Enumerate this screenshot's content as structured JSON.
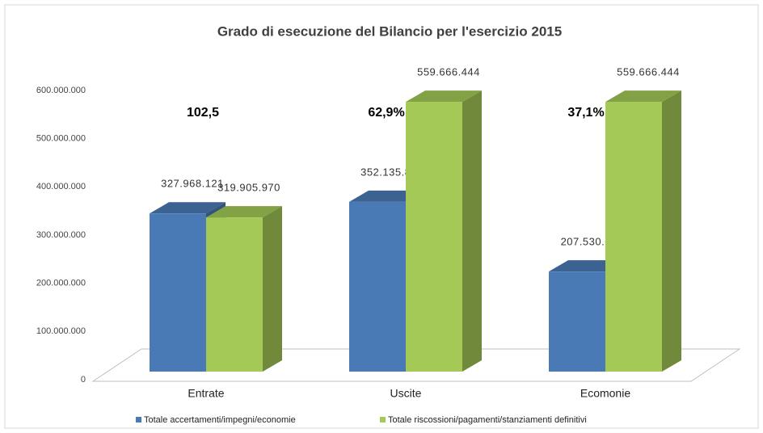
{
  "chart_data": {
    "type": "bar3d",
    "title": "Grado di esecuzione del Bilancio per l'esercizio 2015",
    "categories": [
      "Entrate",
      "Uscite",
      "Ecomonie"
    ],
    "series": [
      {
        "name": "Totale accertamenti/impegni/economie",
        "color": "#4a7ab5",
        "values": [
          327968121,
          352135833,
          207530611
        ],
        "value_labels": [
          "327.968.121",
          "352.135.833",
          "207.530.611"
        ]
      },
      {
        "name": "Totale riscossioni/pagamenti/stanziamenti definitivi",
        "color": "#a4c956",
        "values": [
          319905970,
          559666444,
          559666444
        ],
        "value_labels": [
          "319.905.970",
          "559.666.444",
          "559.666.444"
        ]
      }
    ],
    "annotations": [
      "102,5",
      "62,9%",
      "37,1%"
    ],
    "ylim": [
      0,
      600000000
    ],
    "yticks": [
      0,
      {
        "value": 100000000,
        "label": "100.000.000"
      },
      {
        "value": 200000000,
        "label": "200.000.000"
      },
      {
        "value": 300000000,
        "label": "300.000.000"
      },
      {
        "value": 400000000,
        "label": "400.000.000"
      },
      {
        "value": 500000000,
        "label": "500.000.000"
      },
      {
        "value": 600000000,
        "label": "600.000.000"
      }
    ],
    "legend": "bottom"
  }
}
